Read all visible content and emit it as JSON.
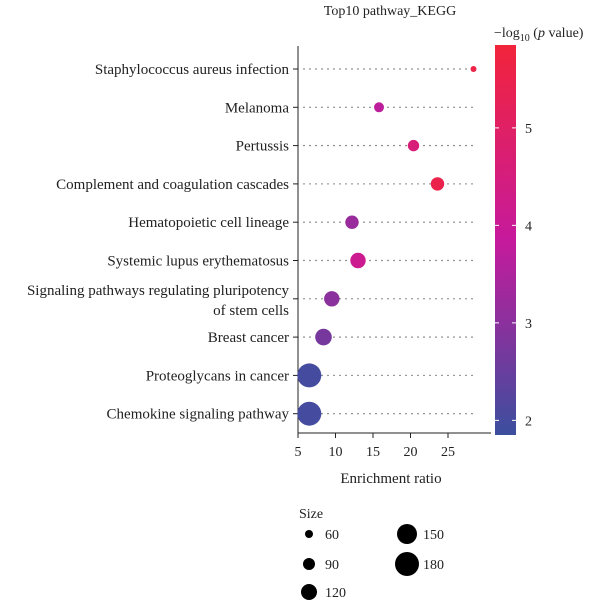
{
  "chart_data": {
    "type": "scatter",
    "title": "Top10 pathway_KEGG",
    "xlabel": "Enrichment ratio",
    "ylabel": "",
    "xlim": [
      5,
      29
    ],
    "xticks": [
      5,
      10,
      15,
      20,
      25
    ],
    "grid": "dotted",
    "categories": [
      "Staphylococcus aureus infection",
      "Melanoma",
      "Pertussis",
      "Complement and coagulation cascades",
      "Hematopoietic cell lineage",
      "Systemic lupus erythematosus",
      "Signaling pathways regulating pluripotency of stem cells",
      "Breast cancer",
      "Proteoglycans in cancer",
      "Chemokine signaling pathway"
    ],
    "points": [
      {
        "category": "Staphylococcus aureus infection",
        "x": 28.4,
        "size": 45,
        "neglog10p": 5.6
      },
      {
        "category": "Melanoma",
        "x": 15.8,
        "size": 75,
        "neglog10p": 3.7
      },
      {
        "category": "Pertussis",
        "x": 20.4,
        "size": 85,
        "neglog10p": 4.6
      },
      {
        "category": "Complement and coagulation cascades",
        "x": 23.6,
        "size": 100,
        "neglog10p": 5.5
      },
      {
        "category": "Hematopoietic cell lineage",
        "x": 12.2,
        "size": 100,
        "neglog10p": 3.2
      },
      {
        "category": "Systemic lupus erythematosus",
        "x": 13.0,
        "size": 115,
        "neglog10p": 4.1
      },
      {
        "category": "Signaling pathways regulating pluripotency of stem cells",
        "x": 9.5,
        "size": 115,
        "neglog10p": 3.0
      },
      {
        "category": "Breast cancer",
        "x": 8.4,
        "size": 125,
        "neglog10p": 2.7
      },
      {
        "category": "Proteoglycans in cancer",
        "x": 6.5,
        "size": 180,
        "neglog10p": 2.0
      },
      {
        "category": "Chemokine signaling pathway",
        "x": 6.5,
        "size": 180,
        "neglog10p": 2.0
      }
    ],
    "colorbar": {
      "title_prefix": "−log",
      "title_sub": "10",
      "title_suffix": " (",
      "title_italic": "p",
      "title_end": " value)",
      "range": [
        1.85,
        5.85
      ],
      "ticks": [
        2,
        3,
        4,
        5
      ],
      "low_color": "#3b4f9e",
      "mid_color": "#c61a9c",
      "high_color": "#f2243b"
    },
    "size_legend": {
      "title": "Size",
      "values": [
        60,
        90,
        120,
        150,
        180
      ]
    }
  }
}
